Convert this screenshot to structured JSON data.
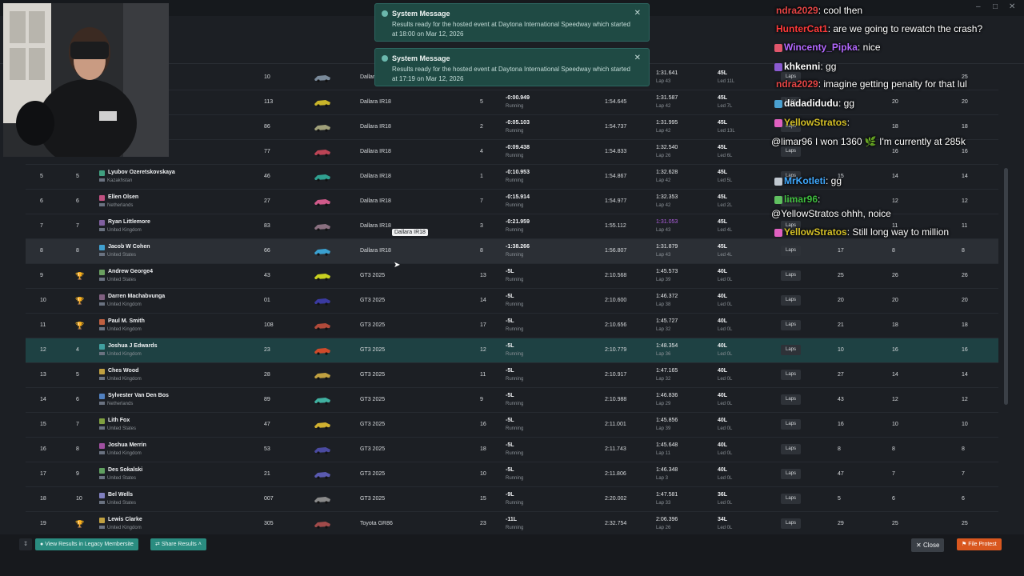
{
  "toasts": [
    {
      "title": "System Message",
      "body": "Results ready for the hosted event at Daytona International Speedway which started at 18:00 on Mar 12, 2026"
    },
    {
      "title": "System Message",
      "body": "Results ready for the hosted event at Daytona International Speedway which started at 17:19 on Mar 12, 2026"
    }
  ],
  "tooltip": "Dallara IR18",
  "footer": {
    "legacy_label": "View Results in Legacy Membersite",
    "share_label": "Share Results",
    "close_label": "Close",
    "protest_label": "File Protest"
  },
  "rows": [
    {
      "pos": "",
      "cls": "",
      "name": "",
      "country": "",
      "num": "10",
      "car": "Dallara IR18",
      "start": "",
      "gap": "",
      "status": "",
      "total": "",
      "best": "1:31.641",
      "best_lap": "Lap 43",
      "laps": "45L",
      "led": "Led 11L",
      "c1": "",
      "c2": "",
      "c3": "25"
    },
    {
      "pos": "",
      "cls": "",
      "name": "",
      "country": "",
      "num": "113",
      "car": "Dallara IR18",
      "start": "5",
      "gap": "-0:00.949",
      "status": "Running",
      "total": "1:54.645",
      "best": "1:31.587",
      "best_lap": "Lap 42",
      "laps": "45L",
      "led": "Led 7L",
      "c1": "",
      "c2": "20",
      "c3": "20"
    },
    {
      "pos": "",
      "cls": "",
      "name": "",
      "country": "",
      "num": "86",
      "car": "Dallara IR18",
      "start": "2",
      "gap": "-0:05.103",
      "status": "Running",
      "total": "1:54.737",
      "best": "1:31.995",
      "best_lap": "Lap 42",
      "laps": "45L",
      "led": "Led 13L",
      "c1": "",
      "c2": "18",
      "c3": "18"
    },
    {
      "pos": "",
      "cls": "",
      "name": "",
      "country": "",
      "num": "77",
      "car": "Dallara IR18",
      "start": "4",
      "gap": "-0:09.438",
      "status": "Running",
      "total": "1:54.833",
      "best": "1:32.540",
      "best_lap": "Lap 26",
      "laps": "45L",
      "led": "Led 6L",
      "c1": "",
      "c2": "16",
      "c3": "16"
    },
    {
      "pos": "5",
      "cls": "5",
      "name": "Lyubov Ozeretskovskaya",
      "country": "Kazakhstan",
      "num": "46",
      "car": "Dallara IR18",
      "start": "1",
      "gap": "-0:10.953",
      "status": "Running",
      "total": "1:54.867",
      "best": "1:32.628",
      "best_lap": "Lap 42",
      "laps": "45L",
      "led": "Led 5L",
      "c1": "15",
      "c2": "14",
      "c3": "14"
    },
    {
      "pos": "6",
      "cls": "6",
      "name": "Ellen Olsen",
      "country": "Netherlands",
      "num": "27",
      "car": "Dallara IR18",
      "start": "7",
      "gap": "-0:15.914",
      "status": "Running",
      "total": "1:54.977",
      "best": "1:32.353",
      "best_lap": "Lap 42",
      "laps": "45L",
      "led": "Led 2L",
      "c1": "",
      "c2": "12",
      "c3": "12"
    },
    {
      "pos": "7",
      "cls": "7",
      "name": "Ryan Littlemore",
      "country": "United Kingdom",
      "num": "83",
      "car": "Dallara IR18",
      "start": "3",
      "gap": "-0:21.959",
      "status": "Running",
      "total": "1:55.112",
      "best": "1:31.053",
      "best_lap": "Lap 43",
      "laps": "45L",
      "led": "Led 4L",
      "c1": "",
      "c2": "11",
      "c3": "11"
    },
    {
      "pos": "8",
      "cls": "8",
      "name": "Jacob W Cohen",
      "country": "United States",
      "num": "66",
      "car": "Dallara IR18",
      "start": "8",
      "gap": "-1:38.266",
      "status": "Running",
      "total": "1:56.807",
      "best": "1:31.879",
      "best_lap": "Lap 43",
      "laps": "45L",
      "led": "Led 4L",
      "c1": "17",
      "c2": "8",
      "c3": "8"
    },
    {
      "pos": "9",
      "cls": "trophy-gold",
      "name": "Andrew George4",
      "country": "United States",
      "num": "43",
      "car": "GT3 2025",
      "start": "13",
      "gap": "-5L",
      "status": "Running",
      "total": "2:10.568",
      "best": "1:45.573",
      "best_lap": "Lap 39",
      "laps": "40L",
      "led": "Led 0L",
      "c1": "25",
      "c2": "26",
      "c3": "26"
    },
    {
      "pos": "10",
      "cls": "trophy-silver",
      "name": "Darren Machabvunga",
      "country": "United Kingdom",
      "num": "01",
      "car": "GT3 2025",
      "start": "14",
      "gap": "-5L",
      "status": "Running",
      "total": "2:10.600",
      "best": "1:46.372",
      "best_lap": "Lap 38",
      "laps": "40L",
      "led": "Led 0L",
      "c1": "20",
      "c2": "20",
      "c3": "20"
    },
    {
      "pos": "11",
      "cls": "trophy-bronze",
      "name": "Paul M. Smith",
      "country": "United Kingdom",
      "num": "108",
      "car": "GT3 2025",
      "start": "17",
      "gap": "-5L",
      "status": "Running",
      "total": "2:10.656",
      "best": "1:45.727",
      "best_lap": "Lap 32",
      "laps": "40L",
      "led": "Led 0L",
      "c1": "21",
      "c2": "18",
      "c3": "18"
    },
    {
      "pos": "12",
      "cls": "4",
      "name": "Joshua J Edwards",
      "country": "United Kingdom",
      "num": "23",
      "car": "GT3 2025",
      "start": "12",
      "gap": "-5L",
      "status": "Running",
      "total": "2:10.779",
      "best": "1:48.354",
      "best_lap": "Lap 36",
      "laps": "40L",
      "led": "Led 0L",
      "c1": "10",
      "c2": "16",
      "c3": "16"
    },
    {
      "pos": "13",
      "cls": "5",
      "name": "Ches Wood",
      "country": "United Kingdom",
      "num": "28",
      "car": "GT3 2025",
      "start": "11",
      "gap": "-5L",
      "status": "Running",
      "total": "2:10.917",
      "best": "1:47.165",
      "best_lap": "Lap 32",
      "laps": "40L",
      "led": "Led 0L",
      "c1": "27",
      "c2": "14",
      "c3": "14"
    },
    {
      "pos": "14",
      "cls": "6",
      "name": "Sylvester Van Den Bos",
      "country": "Netherlands",
      "num": "89",
      "car": "GT3 2025",
      "start": "9",
      "gap": "-5L",
      "status": "Running",
      "total": "2:10.988",
      "best": "1:46.836",
      "best_lap": "Lap 29",
      "laps": "40L",
      "led": "Led 0L",
      "c1": "43",
      "c2": "12",
      "c3": "12"
    },
    {
      "pos": "15",
      "cls": "7",
      "name": "Lith Fox",
      "country": "United States",
      "num": "47",
      "car": "GT3 2025",
      "start": "16",
      "gap": "-5L",
      "status": "Running",
      "total": "2:11.001",
      "best": "1:45.856",
      "best_lap": "Lap 39",
      "laps": "40L",
      "led": "Led 0L",
      "c1": "16",
      "c2": "10",
      "c3": "10"
    },
    {
      "pos": "16",
      "cls": "8",
      "name": "Joshua Merrin",
      "country": "United Kingdom",
      "num": "53",
      "car": "GT3 2025",
      "start": "18",
      "gap": "-5L",
      "status": "Running",
      "total": "2:11.743",
      "best": "1:45.648",
      "best_lap": "Lap 11",
      "laps": "40L",
      "led": "Led 0L",
      "c1": "8",
      "c2": "8",
      "c3": "8"
    },
    {
      "pos": "17",
      "cls": "9",
      "name": "Des Sokalski",
      "country": "United States",
      "num": "21",
      "car": "GT3 2025",
      "start": "10",
      "gap": "-5L",
      "status": "Running",
      "total": "2:11.806",
      "best": "1:46.348",
      "best_lap": "Lap 3",
      "laps": "40L",
      "led": "Led 0L",
      "c1": "47",
      "c2": "7",
      "c3": "7"
    },
    {
      "pos": "18",
      "cls": "10",
      "name": "Bel Wells",
      "country": "United States",
      "num": "007",
      "car": "GT3 2025",
      "start": "15",
      "gap": "-9L",
      "status": "Running",
      "total": "2:20.002",
      "best": "1:47.581",
      "best_lap": "Lap 33",
      "laps": "36L",
      "led": "Led 0L",
      "c1": "5",
      "c2": "6",
      "c3": "6"
    },
    {
      "pos": "19",
      "cls": "trophy-gold",
      "name": "Lewis Clarke",
      "country": "United Kingdom",
      "num": "305",
      "car": "Toyota GR86",
      "start": "23",
      "gap": "-11L",
      "status": "Running",
      "total": "2:32.754",
      "best": "2:06.396",
      "best_lap": "Lap 26",
      "laps": "34L",
      "led": "Led 0L",
      "c1": "29",
      "c2": "25",
      "c3": "25"
    }
  ],
  "laps_button": "Laps",
  "chat": [
    {
      "user": "ndra2029",
      "text": ": cool then",
      "color": "#e64545"
    },
    {
      "user": "HunterCat1",
      "text": ": are we going to rewatch the crash?",
      "color": "#ff3a3a"
    },
    {
      "user": "Wincenty_Pipka",
      "text": ": nice",
      "color": "#b368ff"
    },
    {
      "user": "khkenni",
      "text": ": gg",
      "color": "#ffffff"
    },
    {
      "user": "ndra2029",
      "text": ": imagine getting penalty for that lul",
      "color": "#e64545"
    },
    {
      "user": "dadadidudu",
      "text": ": gg",
      "color": "#ffffff"
    },
    {
      "user": "YellowStratos",
      "text": ":",
      "color": "#d4c026"
    },
    {
      "user": "",
      "text": "@limar96 I won 1360 🌿 I'm currently at 285k",
      "color": "#ffffff"
    },
    {
      "user": "MrKotleti",
      "text": ": gg",
      "color": "#3fa9ff"
    },
    {
      "user": "limar96",
      "text": ":",
      "color": "#3fbf3f"
    },
    {
      "user": "",
      "text": "@YellowStratos ohhh, noice",
      "color": "#ffffff"
    },
    {
      "user": "YellowStratos",
      "text": ": Still long way to million",
      "color": "#d4c026"
    }
  ]
}
